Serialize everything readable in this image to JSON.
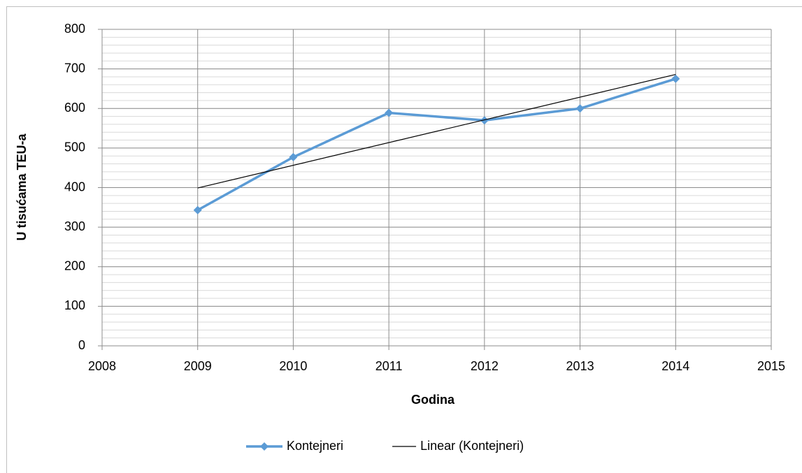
{
  "chart_data": {
    "type": "line",
    "x_label": "Godina",
    "y_label": "U tisućama TEU-a",
    "xlim": [
      2008,
      2015
    ],
    "xticks": [
      2008,
      2009,
      2010,
      2011,
      2012,
      2013,
      2014,
      2015
    ],
    "ylim": [
      0,
      800
    ],
    "yticks": [
      0,
      100,
      200,
      300,
      400,
      500,
      600,
      700,
      800
    ],
    "y_minor_step": 20,
    "grid": true,
    "legend": "bottom",
    "series": [
      {
        "name": "Kontejneri",
        "color": "#5b9bd5",
        "marker": "diamond",
        "x": [
          2009,
          2010,
          2011,
          2012,
          2013,
          2014
        ],
        "values": [
          343,
          477,
          589,
          570,
          600,
          675
        ]
      },
      {
        "name": "Linear (Kontejneri)",
        "color": "#000000",
        "x": [
          2009,
          2014
        ],
        "values": [
          399,
          686
        ]
      }
    ]
  }
}
